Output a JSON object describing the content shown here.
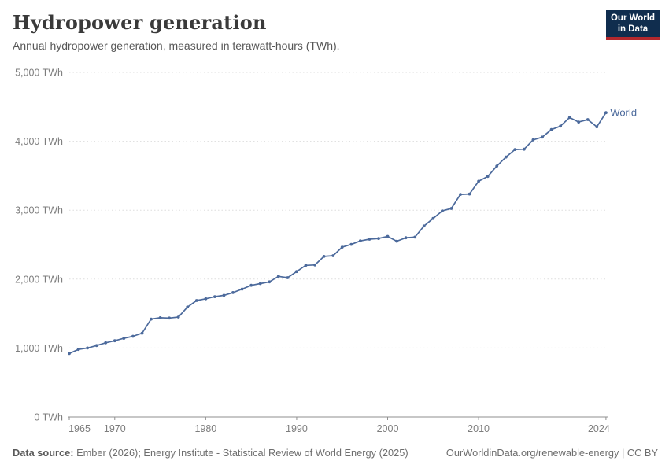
{
  "header": {
    "title": "Hydropower generation",
    "subtitle": "Annual hydropower generation, measured in terawatt-hours (TWh).",
    "logo_line1": "Our World",
    "logo_line2": "in Data"
  },
  "chart_data": {
    "type": "line",
    "title": "Hydropower generation",
    "unit": "TWh",
    "xlabel": "",
    "ylabel": "TWh",
    "xlim": [
      1965,
      2024
    ],
    "ylim": [
      0,
      5000
    ],
    "grid": true,
    "legend_position": "end-of-line",
    "x": [
      1965,
      1966,
      1967,
      1968,
      1969,
      1970,
      1971,
      1972,
      1973,
      1974,
      1975,
      1976,
      1977,
      1978,
      1979,
      1980,
      1981,
      1982,
      1983,
      1984,
      1985,
      1986,
      1987,
      1988,
      1989,
      1990,
      1991,
      1992,
      1993,
      1994,
      1995,
      1996,
      1997,
      1998,
      1999,
      2000,
      2001,
      2002,
      2003,
      2004,
      2005,
      2006,
      2007,
      2008,
      2009,
      2010,
      2011,
      2012,
      2013,
      2014,
      2015,
      2016,
      2017,
      2018,
      2019,
      2020,
      2021,
      2022,
      2023,
      2024
    ],
    "series": [
      {
        "name": "World",
        "color": "#4c6a9c",
        "values": [
          920,
          980,
          1000,
          1035,
          1075,
          1105,
          1140,
          1170,
          1215,
          1420,
          1440,
          1435,
          1450,
          1595,
          1690,
          1715,
          1745,
          1765,
          1805,
          1855,
          1910,
          1935,
          1960,
          2040,
          2020,
          2110,
          2200,
          2205,
          2330,
          2340,
          2465,
          2505,
          2555,
          2580,
          2590,
          2620,
          2550,
          2600,
          2610,
          2770,
          2880,
          2990,
          3025,
          3230,
          3235,
          3420,
          3490,
          3640,
          3770,
          3880,
          3885,
          4020,
          4060,
          4170,
          4220,
          4345,
          4280,
          4315,
          4210,
          4415
        ]
      }
    ],
    "y_ticks": [
      {
        "value": 0,
        "label": "0 TWh"
      },
      {
        "value": 1000,
        "label": "1,000 TWh"
      },
      {
        "value": 2000,
        "label": "2,000 TWh"
      },
      {
        "value": 3000,
        "label": "3,000 TWh"
      },
      {
        "value": 4000,
        "label": "4,000 TWh"
      },
      {
        "value": 5000,
        "label": "5,000 TWh"
      }
    ],
    "x_ticks": [
      {
        "value": 1965,
        "label": "1965"
      },
      {
        "value": 1970,
        "label": "1970"
      },
      {
        "value": 1980,
        "label": "1980"
      },
      {
        "value": 1990,
        "label": "1990"
      },
      {
        "value": 2000,
        "label": "2000"
      },
      {
        "value": 2010,
        "label": "2010"
      },
      {
        "value": 2024,
        "label": "2024"
      }
    ]
  },
  "footer": {
    "source_label": "Data source:",
    "source_text": " Ember (2026); Energy Institute - Statistical Review of World Energy (2025)",
    "link_text": "OurWorldinData.org/renewable-energy | CC BY"
  },
  "colors": {
    "line": "#4c6a9c",
    "gridline": "#dddddd",
    "axis": "#8f8f8f",
    "tick_label": "#7d7d7d",
    "logo_bg": "#102d4e",
    "logo_accent": "#b3282d"
  }
}
